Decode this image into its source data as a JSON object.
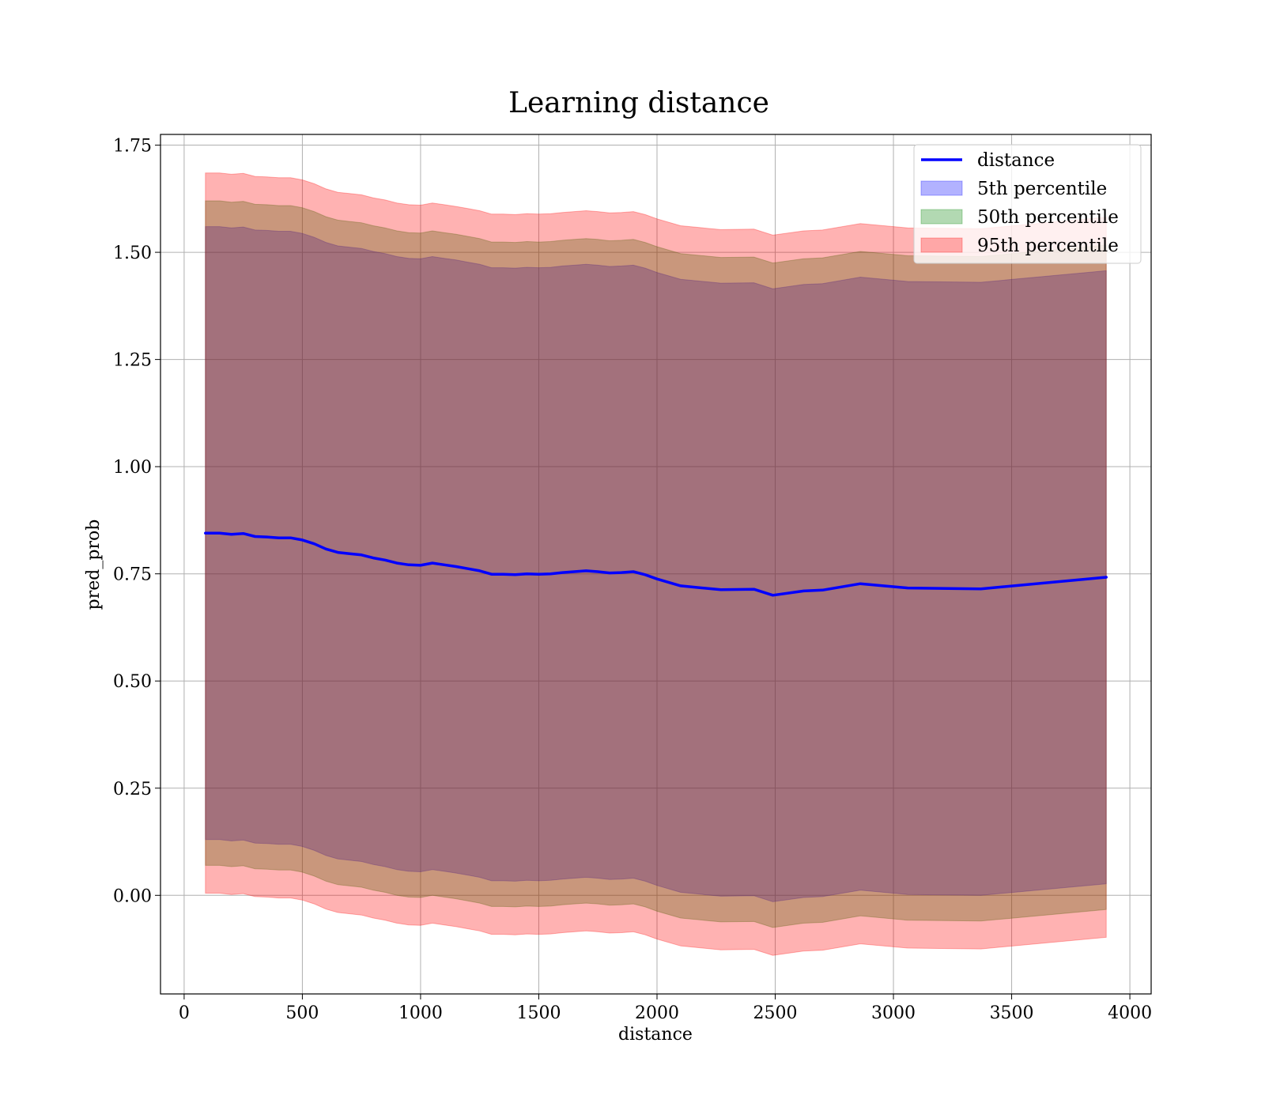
{
  "chart_data": {
    "type": "area",
    "title": "Learning distance",
    "xlabel": "distance",
    "ylabel": "pred_prob",
    "xlim": [
      -100,
      4090
    ],
    "ylim": [
      -0.23,
      1.775
    ],
    "xticks": [
      0,
      500,
      1000,
      1500,
      2000,
      2500,
      3000,
      3500,
      4000
    ],
    "xtick_labels": [
      "0",
      "500",
      "1000",
      "1500",
      "2000",
      "2500",
      "3000",
      "3500",
      "4000"
    ],
    "yticks": [
      0.0,
      0.25,
      0.5,
      0.75,
      1.0,
      1.25,
      1.5,
      1.75
    ],
    "ytick_labels": [
      "0.00",
      "0.25",
      "0.50",
      "0.75",
      "1.00",
      "1.25",
      "1.50",
      "1.75"
    ],
    "grid": true,
    "legend_position": "top-right",
    "x": [
      90,
      150,
      200,
      250,
      300,
      350,
      400,
      450,
      500,
      550,
      600,
      650,
      700,
      750,
      800,
      850,
      900,
      950,
      1000,
      1050,
      1100,
      1150,
      1200,
      1250,
      1300,
      1350,
      1400,
      1450,
      1500,
      1550,
      1600,
      1650,
      1700,
      1750,
      1800,
      1850,
      1900,
      1950,
      2000,
      2100,
      2270,
      2410,
      2490,
      2620,
      2700,
      2860,
      3060,
      3370,
      3900
    ],
    "series": [
      {
        "name": "distance",
        "kind": "line",
        "color": "#0000ff",
        "values": [
          0.845,
          0.845,
          0.842,
          0.844,
          0.837,
          0.836,
          0.834,
          0.834,
          0.829,
          0.82,
          0.808,
          0.8,
          0.797,
          0.794,
          0.787,
          0.782,
          0.775,
          0.771,
          0.77,
          0.775,
          0.771,
          0.767,
          0.762,
          0.757,
          0.749,
          0.749,
          0.748,
          0.75,
          0.749,
          0.75,
          0.753,
          0.755,
          0.757,
          0.755,
          0.752,
          0.753,
          0.755,
          0.748,
          0.738,
          0.722,
          0.713,
          0.714,
          0.7,
          0.71,
          0.712,
          0.727,
          0.717,
          0.715,
          0.742
        ]
      },
      {
        "name": "5th percentile",
        "kind": "band",
        "color": "#0000ff",
        "upper": [
          1.56,
          1.56,
          1.557,
          1.559,
          1.552,
          1.551,
          1.549,
          1.549,
          1.544,
          1.535,
          1.523,
          1.515,
          1.512,
          1.509,
          1.502,
          1.497,
          1.49,
          1.486,
          1.485,
          1.49,
          1.486,
          1.482,
          1.477,
          1.472,
          1.464,
          1.464,
          1.463,
          1.465,
          1.464,
          1.465,
          1.468,
          1.47,
          1.472,
          1.47,
          1.467,
          1.468,
          1.47,
          1.463,
          1.453,
          1.437,
          1.428,
          1.429,
          1.415,
          1.425,
          1.427,
          1.442,
          1.432,
          1.43,
          1.457
        ],
        "lower": [
          0.13,
          0.13,
          0.127,
          0.129,
          0.122,
          0.121,
          0.119,
          0.119,
          0.114,
          0.105,
          0.093,
          0.085,
          0.082,
          0.079,
          0.072,
          0.067,
          0.06,
          0.056,
          0.055,
          0.06,
          0.056,
          0.052,
          0.047,
          0.042,
          0.034,
          0.034,
          0.033,
          0.035,
          0.034,
          0.035,
          0.038,
          0.04,
          0.042,
          0.04,
          0.037,
          0.038,
          0.04,
          0.033,
          0.023,
          0.007,
          -0.002,
          -0.001,
          -0.015,
          -0.005,
          -0.003,
          0.012,
          0.002,
          0.0,
          0.027
        ]
      },
      {
        "name": "50th percentile",
        "kind": "band",
        "color": "#008000",
        "upper": [
          1.62,
          1.62,
          1.617,
          1.619,
          1.612,
          1.611,
          1.609,
          1.609,
          1.604,
          1.595,
          1.583,
          1.575,
          1.572,
          1.569,
          1.562,
          1.557,
          1.55,
          1.546,
          1.545,
          1.55,
          1.546,
          1.542,
          1.537,
          1.532,
          1.524,
          1.524,
          1.523,
          1.525,
          1.524,
          1.525,
          1.528,
          1.53,
          1.532,
          1.53,
          1.527,
          1.528,
          1.53,
          1.523,
          1.513,
          1.497,
          1.488,
          1.489,
          1.475,
          1.485,
          1.487,
          1.502,
          1.492,
          1.49,
          1.517
        ],
        "lower": [
          0.07,
          0.07,
          0.067,
          0.069,
          0.062,
          0.061,
          0.059,
          0.059,
          0.054,
          0.045,
          0.033,
          0.025,
          0.022,
          0.019,
          0.012,
          0.007,
          0.0,
          -0.004,
          -0.005,
          0.0,
          -0.004,
          -0.008,
          -0.013,
          -0.018,
          -0.026,
          -0.026,
          -0.027,
          -0.025,
          -0.026,
          -0.025,
          -0.022,
          -0.02,
          -0.018,
          -0.02,
          -0.023,
          -0.022,
          -0.02,
          -0.027,
          -0.037,
          -0.053,
          -0.062,
          -0.061,
          -0.075,
          -0.065,
          -0.063,
          -0.048,
          -0.058,
          -0.06,
          -0.033
        ]
      },
      {
        "name": "95th percentile",
        "kind": "band",
        "color": "#ff0000",
        "upper": [
          1.685,
          1.685,
          1.682,
          1.684,
          1.677,
          1.676,
          1.674,
          1.674,
          1.669,
          1.66,
          1.648,
          1.64,
          1.637,
          1.634,
          1.627,
          1.622,
          1.615,
          1.611,
          1.61,
          1.615,
          1.611,
          1.607,
          1.602,
          1.597,
          1.589,
          1.589,
          1.588,
          1.59,
          1.589,
          1.59,
          1.593,
          1.595,
          1.597,
          1.595,
          1.592,
          1.593,
          1.595,
          1.588,
          1.578,
          1.562,
          1.553,
          1.554,
          1.54,
          1.55,
          1.552,
          1.567,
          1.557,
          1.555,
          1.582
        ],
        "lower": [
          0.005,
          0.005,
          0.002,
          0.004,
          -0.003,
          -0.004,
          -0.006,
          -0.006,
          -0.011,
          -0.02,
          -0.032,
          -0.04,
          -0.043,
          -0.046,
          -0.053,
          -0.058,
          -0.065,
          -0.069,
          -0.07,
          -0.065,
          -0.069,
          -0.073,
          -0.078,
          -0.083,
          -0.091,
          -0.091,
          -0.092,
          -0.09,
          -0.091,
          -0.09,
          -0.087,
          -0.085,
          -0.083,
          -0.085,
          -0.088,
          -0.087,
          -0.085,
          -0.092,
          -0.102,
          -0.118,
          -0.127,
          -0.126,
          -0.14,
          -0.13,
          -0.128,
          -0.113,
          -0.123,
          -0.125,
          -0.098
        ]
      }
    ]
  }
}
